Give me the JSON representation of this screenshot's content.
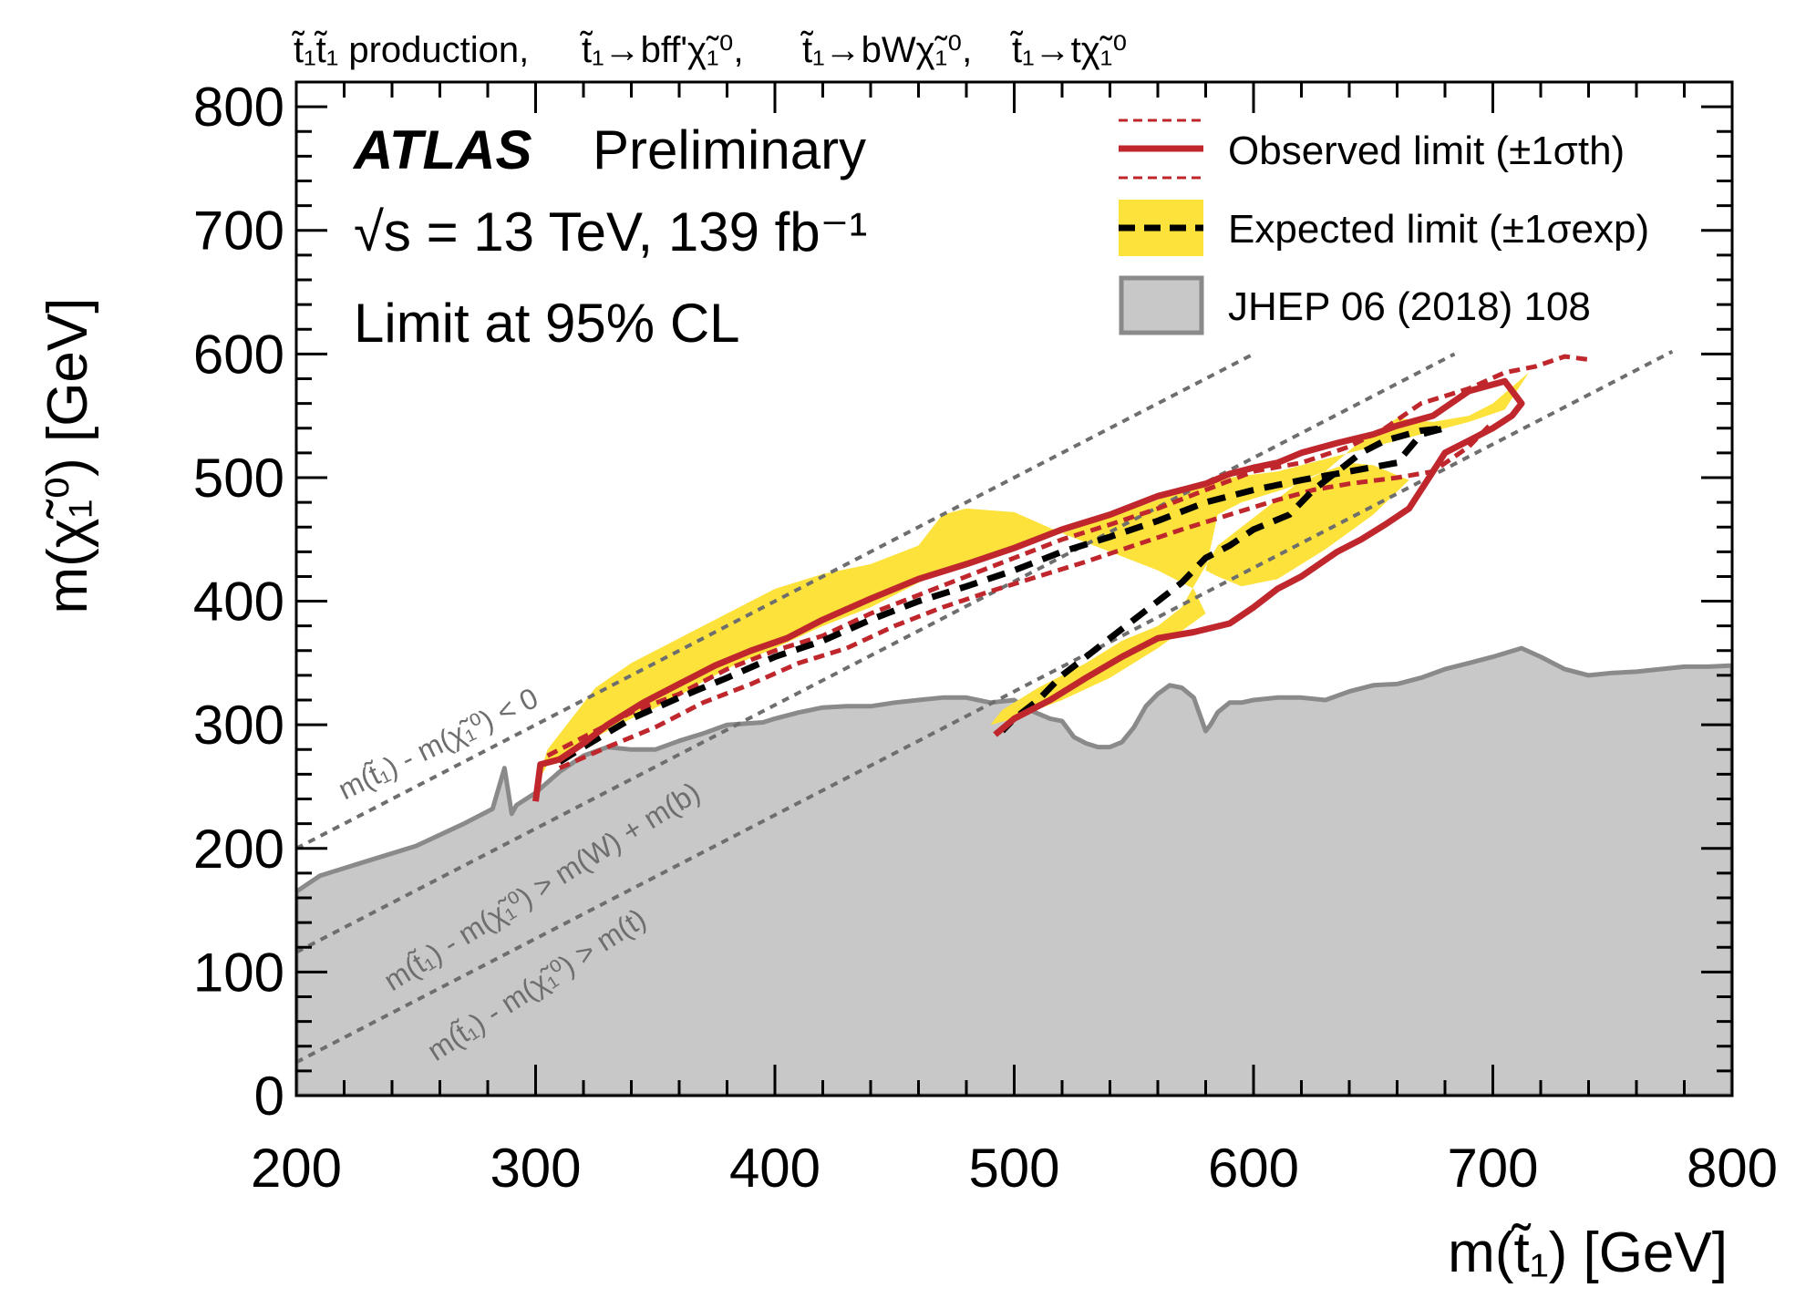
{
  "chart_data": {
    "type": "line",
    "title": "t̃₁t̃₁ production, t̃₁→bff'χ̃₁⁰, t̃₁→bWχ̃₁⁰, t̃₁→tχ̃₁⁰",
    "title_parts": {
      "prod": "t̃₁t̃₁ production,",
      "decay1": "t̃₁→bff'χ̃₁⁰,",
      "decay2": "t̃₁→bWχ̃₁⁰,",
      "decay3": "t̃₁→tχ̃₁⁰"
    },
    "xlabel": "m(t̃₁) [GeV]",
    "ylabel": "m(χ̃₁⁰) [GeV]",
    "xlim": [
      200,
      800
    ],
    "ylim": [
      0,
      820
    ],
    "xticks": [
      200,
      300,
      400,
      500,
      600,
      700,
      800
    ],
    "yticks": [
      0,
      100,
      200,
      300,
      400,
      500,
      600,
      700,
      800
    ],
    "annotations": {
      "atlas": "ATLAS",
      "preliminary": "Preliminary",
      "energy": "√s = 13 TeV, 139 fb⁻¹",
      "cl": "Limit at 95% CL",
      "kin1": "m(t̃₁) - m(χ̃₁⁰) < 0",
      "kin2": "m(t̃₁) - m(χ̃₁⁰) > m(W) + m(b)",
      "kin3": "m(t̃₁) - m(χ̃₁⁰) > m(t)"
    },
    "legend": {
      "observed": "Observed limit (±1σth)",
      "expected": "Expected limit (±1σexp)",
      "previous": "JHEP 06 (2018) 108"
    },
    "kinematic_lines": [
      {
        "name": "kin1",
        "x": [
          200,
          600
        ],
        "y": [
          200,
          600
        ]
      },
      {
        "name": "kin2",
        "x": [
          200,
          684
        ],
        "y": [
          116,
          600
        ]
      },
      {
        "name": "kin3",
        "x": [
          200,
          775
        ],
        "y": [
          27,
          602
        ]
      }
    ],
    "series": [
      {
        "name": "previous",
        "x": [
          200,
          210,
          230,
          250,
          270,
          282,
          287,
          290,
          292,
          300,
          310,
          320,
          330,
          340,
          350,
          360,
          370,
          380,
          395,
          400,
          410,
          420,
          430,
          440,
          450,
          460,
          470,
          480,
          490,
          500,
          505,
          515,
          520,
          525,
          530,
          535,
          540,
          545,
          550,
          555,
          560,
          565,
          570,
          575,
          580,
          582,
          585,
          590,
          595,
          600,
          610,
          620,
          630,
          640,
          650,
          660,
          670,
          680,
          690,
          700,
          712,
          720,
          730,
          740,
          750,
          760,
          770,
          780,
          790,
          800,
          800,
          200
        ],
        "y": [
          165,
          178,
          190,
          202,
          220,
          232,
          265,
          228,
          235,
          245,
          262,
          275,
          282,
          280,
          280,
          287,
          293,
          300,
          302,
          305,
          310,
          314,
          315,
          315,
          318,
          320,
          322,
          322,
          318,
          320,
          313,
          305,
          303,
          290,
          285,
          282,
          282,
          286,
          298,
          315,
          325,
          332,
          330,
          322,
          295,
          300,
          310,
          318,
          318,
          320,
          322,
          322,
          320,
          327,
          332,
          333,
          338,
          345,
          350,
          355,
          362,
          355,
          345,
          340,
          342,
          343,
          345,
          347,
          347,
          348,
          0,
          0
        ]
      },
      {
        "name": "expected_band",
        "x": [
          300,
          305,
          315,
          325,
          340,
          355,
          370,
          385,
          400,
          420,
          440,
          460,
          480,
          500,
          520,
          540,
          560,
          570,
          580,
          590,
          610,
          630,
          650,
          670,
          690,
          705,
          715,
          700,
          690,
          675,
          660,
          645,
          630,
          615,
          595,
          585,
          580,
          585,
          595,
          610,
          630,
          650,
          665,
          650,
          640,
          620,
          605,
          585,
          575,
          570,
          560,
          545,
          530,
          510,
          495,
          490,
          500,
          520,
          540,
          560,
          580,
          575,
          560,
          540,
          520,
          500,
          480,
          470,
          460,
          440,
          420,
          400,
          380,
          360,
          340,
          325,
          315,
          305
        ],
        "y": [
          250,
          268,
          276,
          290,
          305,
          318,
          335,
          350,
          362,
          380,
          395,
          415,
          430,
          445,
          455,
          468,
          482,
          490,
          493,
          500,
          505,
          515,
          525,
          535,
          545,
          555,
          585,
          560,
          550,
          545,
          548,
          530,
          505,
          492,
          480,
          470,
          425,
          420,
          412,
          418,
          442,
          470,
          498,
          510,
          512,
          498,
          475,
          445,
          412,
          395,
          380,
          368,
          350,
          330,
          312,
          300,
          305,
          320,
          338,
          362,
          390,
          410,
          425,
          440,
          455,
          472,
          475,
          470,
          445,
          430,
          422,
          410,
          390,
          370,
          350,
          330,
          305,
          280
        ]
      },
      {
        "name": "expected_limit",
        "x": [
          310,
          320,
          340,
          360,
          380,
          400,
          420,
          440,
          460,
          480,
          500,
          520,
          540,
          560,
          580,
          600,
          620,
          640,
          660,
          670,
          680,
          670,
          655,
          645,
          635,
          625,
          615,
          600,
          590,
          580,
          570,
          560,
          550,
          540,
          530,
          520,
          510,
          500,
          495
        ],
        "y": [
          270,
          282,
          305,
          322,
          338,
          355,
          368,
          385,
          400,
          412,
          425,
          440,
          452,
          465,
          480,
          490,
          498,
          505,
          512,
          535,
          540,
          538,
          530,
          520,
          505,
          490,
          470,
          458,
          445,
          435,
          415,
          400,
          385,
          370,
          355,
          340,
          320,
          305,
          295
        ]
      },
      {
        "name": "observed_limit",
        "x": [
          300,
          302,
          310,
          320,
          330,
          345,
          360,
          375,
          390,
          405,
          420,
          440,
          460,
          480,
          500,
          520,
          540,
          560,
          570,
          580,
          590,
          600,
          610,
          620,
          635,
          650,
          660,
          675,
          690,
          705,
          712,
          708,
          700,
          690,
          680,
          675,
          670,
          665,
          655,
          645,
          635,
          620,
          610,
          600,
          590,
          575,
          560,
          545,
          530,
          515,
          500,
          492
        ],
        "y": [
          238,
          268,
          272,
          285,
          300,
          318,
          333,
          348,
          360,
          370,
          385,
          402,
          418,
          430,
          443,
          458,
          470,
          485,
          490,
          495,
          503,
          508,
          512,
          520,
          528,
          535,
          542,
          550,
          570,
          578,
          560,
          550,
          540,
          530,
          520,
          505,
          490,
          475,
          462,
          450,
          440,
          420,
          410,
          395,
          382,
          375,
          370,
          355,
          338,
          320,
          305,
          292
        ]
      },
      {
        "name": "observed_plus",
        "x": [
          305,
          320,
          340,
          360,
          380,
          400,
          420,
          440,
          460,
          480,
          500,
          520,
          540,
          560,
          580,
          600,
          620,
          640,
          655,
          670,
          690,
          705,
          718,
          730,
          742
        ],
        "y": [
          275,
          290,
          310,
          325,
          345,
          360,
          372,
          390,
          405,
          420,
          435,
          450,
          462,
          475,
          490,
          505,
          512,
          525,
          540,
          560,
          572,
          585,
          590,
          598,
          595
        ]
      },
      {
        "name": "observed_minus",
        "x": [
          310,
          330,
          350,
          370,
          390,
          410,
          430,
          450,
          470,
          490,
          510,
          530,
          550,
          570,
          590,
          610,
          625,
          640,
          660,
          675,
          690,
          700
        ],
        "y": [
          265,
          282,
          298,
          318,
          333,
          350,
          362,
          380,
          395,
          408,
          420,
          432,
          445,
          458,
          470,
          482,
          490,
          495,
          500,
          505,
          525,
          545
        ]
      }
    ]
  },
  "colors": {
    "previous_fill": "#c8c8c8",
    "previous_edge": "#8a8a8a",
    "observed": "#c0272d",
    "expected_band": "#fce23a",
    "expected_line": "#000000",
    "kinematic": "#6e6e6e"
  }
}
